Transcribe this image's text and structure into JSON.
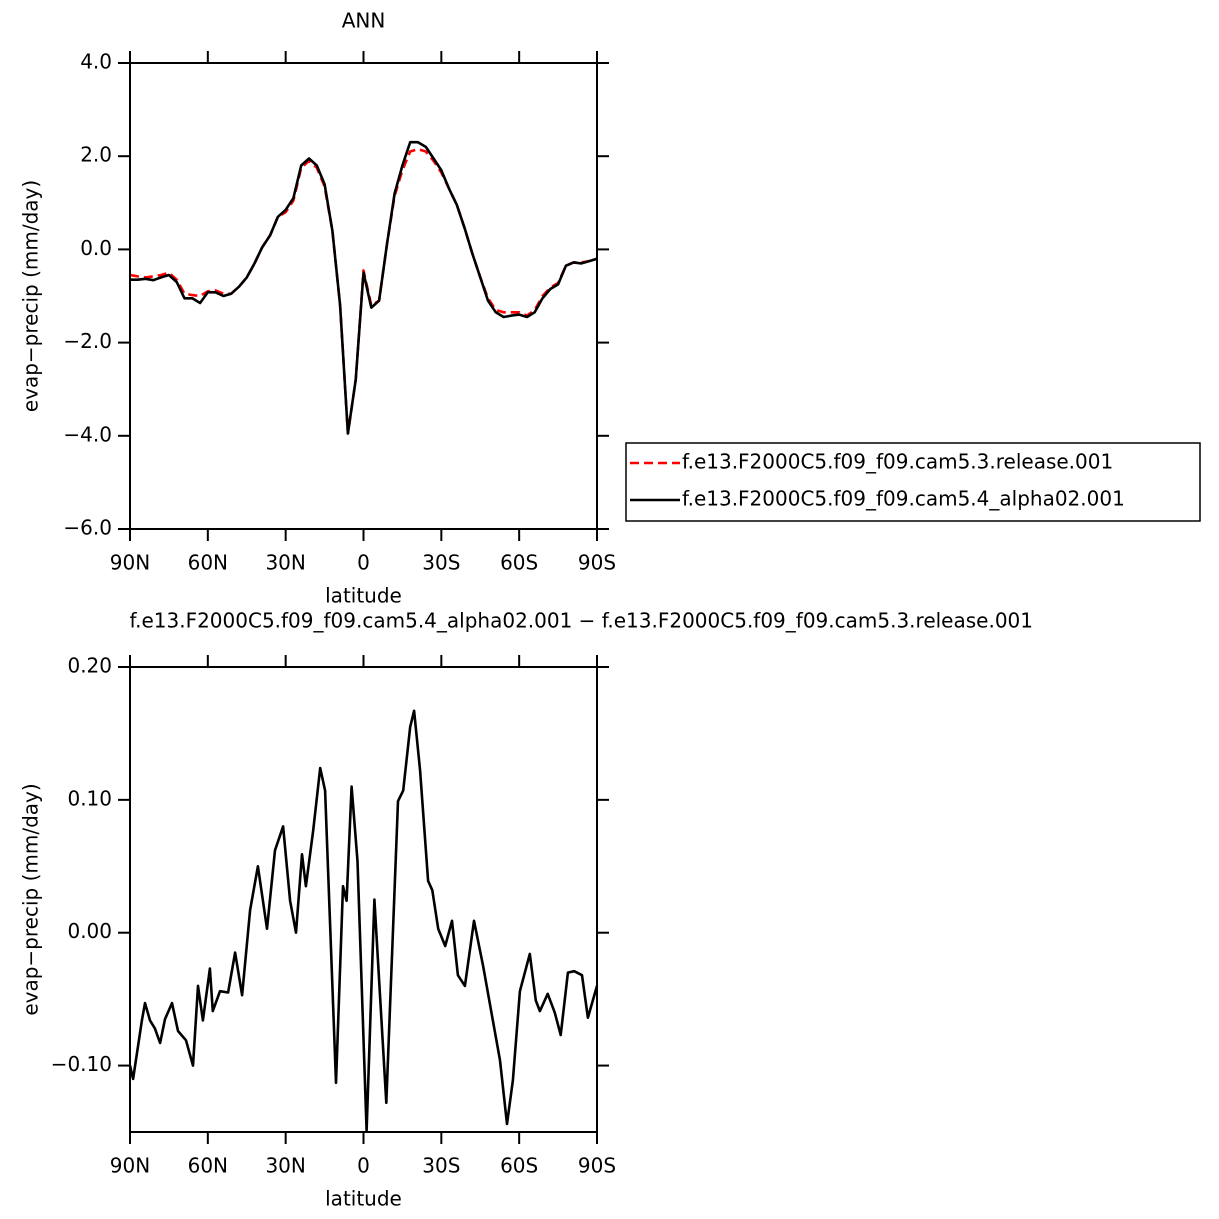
{
  "chart_data": [
    {
      "type": "line",
      "title": "ANN",
      "xlabel": "latitude",
      "ylabel": "evap−precip (mm/day)",
      "x": [
        90,
        87,
        84,
        81,
        78,
        75,
        72,
        69,
        66,
        63,
        60,
        57,
        54,
        51,
        48,
        45,
        42,
        39,
        36,
        33,
        30,
        27,
        24,
        21,
        18,
        15,
        12,
        9,
        6,
        3,
        0,
        -3,
        -6,
        -9,
        -12,
        -15,
        -18,
        -21,
        -24,
        -27,
        -30,
        -33,
        -36,
        -39,
        -42,
        -45,
        -48,
        -51,
        -54,
        -57,
        -60,
        -63,
        -66,
        -69,
        -72,
        -75,
        -78,
        -81,
        -84,
        -87,
        -90
      ],
      "series": [
        {
          "name": "f.e13.F2000C5.f09_f09.cam5.3.release.001",
          "color": "#ff0000",
          "dash": true,
          "values": [
            -0.55,
            -0.58,
            -0.6,
            -0.58,
            -0.55,
            -0.5,
            -0.65,
            -0.95,
            -0.98,
            -1.0,
            -0.9,
            -0.88,
            -0.95,
            -0.95,
            -0.8,
            -0.6,
            -0.3,
            0.05,
            0.3,
            0.7,
            0.8,
            1.05,
            1.75,
            1.9,
            1.75,
            1.35,
            0.4,
            -1.2,
            -3.95,
            -2.8,
            -0.45,
            -1.2,
            -1.1,
            0.1,
            1.15,
            1.7,
            2.1,
            2.15,
            2.1,
            1.9,
            1.65,
            1.3,
            0.95,
            0.45,
            -0.1,
            -0.6,
            -1.05,
            -1.3,
            -1.35,
            -1.35,
            -1.35,
            -1.42,
            -1.3,
            -1.0,
            -0.82,
            -0.72,
            -0.35,
            -0.28,
            -0.28,
            -0.25,
            -0.2
          ]
        },
        {
          "name": "f.e13.F2000C5.f09_f09.cam5.4_alpha02.001",
          "color": "#000000",
          "dash": false,
          "values": [
            -0.65,
            -0.65,
            -0.63,
            -0.66,
            -0.6,
            -0.55,
            -0.7,
            -1.05,
            -1.05,
            -1.15,
            -0.92,
            -0.92,
            -1.0,
            -0.95,
            -0.8,
            -0.6,
            -0.3,
            0.05,
            0.3,
            0.7,
            0.85,
            1.1,
            1.8,
            1.95,
            1.8,
            1.4,
            0.4,
            -1.2,
            -3.95,
            -2.8,
            -0.5,
            -1.25,
            -1.1,
            0.1,
            1.2,
            1.8,
            2.3,
            2.3,
            2.2,
            1.95,
            1.7,
            1.3,
            0.95,
            0.45,
            -0.1,
            -0.6,
            -1.1,
            -1.35,
            -1.45,
            -1.42,
            -1.4,
            -1.45,
            -1.35,
            -1.05,
            -0.85,
            -0.75,
            -0.35,
            -0.28,
            -0.3,
            -0.25,
            -0.2
          ]
        }
      ],
      "xlim": [
        90,
        -90
      ],
      "xticks": [
        {
          "value": 90,
          "label": "90N"
        },
        {
          "value": 60,
          "label": "60N"
        },
        {
          "value": 30,
          "label": "30N"
        },
        0,
        {
          "value": -30,
          "label": "30S"
        },
        {
          "value": -60,
          "label": "60S"
        },
        {
          "value": -90,
          "label": "90S"
        }
      ],
      "ylim": [
        -6,
        4
      ],
      "yticks": [
        {
          "value": 4,
          "label": "4.0"
        },
        {
          "value": 2,
          "label": "2.0"
        },
        {
          "value": 0,
          "label": "0.0"
        },
        {
          "value": -2,
          "label": "−2.0"
        },
        {
          "value": -4,
          "label": "−4.0"
        },
        {
          "value": -6,
          "label": "−6.0"
        }
      ],
      "legend": "right"
    },
    {
      "type": "line",
      "title": "f.e13.F2000C5.f09_f09.cam5.4_alpha02.001 − f.e13.F2000C5.f09_f09.cam5.3.release.001",
      "xlabel": "latitude",
      "ylabel": "evap−precip (mm/day)",
      "x": [
        90,
        88.8,
        85.4,
        84.2,
        82.3,
        80.4,
        78.4,
        76.5,
        73.8,
        71.5,
        68.4,
        65.7,
        63.8,
        61.9,
        59.2,
        58.1,
        55.3,
        52.2,
        49.5,
        46.8,
        43.7,
        40.7,
        37.2,
        34.1,
        31,
        28.3,
        26,
        23.7,
        22.2,
        19.4,
        16.7,
        14.8,
        10.6,
        7.9,
        6.5,
        4.6,
        2.3,
        -1.2,
        -4.2,
        -8.8,
        -13.3,
        -15.3,
        -18,
        -19.5,
        -21.8,
        -24.9,
        -26.5,
        -28.8,
        -31.5,
        -34.1,
        -36.4,
        -39.1,
        -42.6,
        -46.1,
        -49.5,
        -52.6,
        -55.3,
        -57.6,
        -60.3,
        -64.1,
        -66.4,
        -68,
        -71,
        -73.7,
        -76,
        -78.8,
        -81.2,
        -84.2,
        -86.5,
        -90
      ],
      "series": [
        {
          "name": "f.e13.F2000C5.f09_f09.cam5.4_alpha02.001 − f.e13.F2000C5.f09_f09.cam5.3.release.001",
          "color": "#000000",
          "dash": false,
          "values": [
            -0.1,
            -0.11,
            -0.066,
            -0.053,
            -0.066,
            -0.072,
            -0.083,
            -0.065,
            -0.053,
            -0.074,
            -0.081,
            -0.1,
            -0.04,
            -0.066,
            -0.027,
            -0.059,
            -0.044,
            -0.045,
            -0.015,
            -0.047,
            0.017,
            0.05,
            0.003,
            0.062,
            0.08,
            0.024,
            0.0,
            0.059,
            0.035,
            0.077,
            0.124,
            0.107,
            -0.113,
            0.035,
            0.024,
            0.11,
            0.054,
            -0.149,
            0.025,
            -0.128,
            0.099,
            0.107,
            0.155,
            0.167,
            0.122,
            0.039,
            0.032,
            0.003,
            -0.01,
            0.009,
            -0.032,
            -0.04,
            0.009,
            -0.025,
            -0.062,
            -0.096,
            -0.144,
            -0.111,
            -0.044,
            -0.016,
            -0.051,
            -0.059,
            -0.046,
            -0.06,
            -0.077,
            -0.03,
            -0.029,
            -0.032,
            -0.064,
            -0.04
          ]
        }
      ],
      "xlim": [
        90,
        -90
      ],
      "xticks": [
        {
          "value": 90,
          "label": "90N"
        },
        {
          "value": 60,
          "label": "60N"
        },
        {
          "value": 30,
          "label": "30N"
        },
        0,
        {
          "value": -30,
          "label": "30S"
        },
        {
          "value": -60,
          "label": "60S"
        },
        {
          "value": -90,
          "label": "90S"
        }
      ],
      "ylim": [
        -0.15,
        0.2
      ],
      "yticks": [
        {
          "value": 0.2,
          "label": "0.20"
        },
        {
          "value": 0.1,
          "label": "0.10"
        },
        {
          "value": 0,
          "label": "0.00"
        },
        {
          "value": -0.1,
          "label": "−0.10"
        }
      ]
    }
  ]
}
